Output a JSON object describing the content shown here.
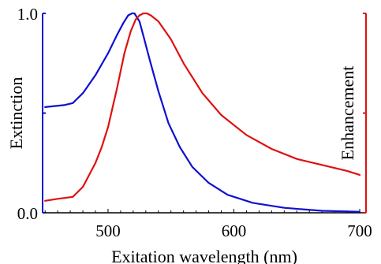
{
  "chart_data": {
    "type": "line",
    "title": "",
    "xlabel": "Exitation wavelength (nm)",
    "ylabel_left": "Extinction",
    "ylabel_right": "Enhancement",
    "xlim": [
      448,
      705
    ],
    "ylim": [
      0,
      1
    ],
    "x_ticks": [
      500,
      600,
      700
    ],
    "y_ticks_left": [
      0.0,
      1.0
    ],
    "y_tick_labels_left": [
      "0.0",
      "1.0"
    ],
    "grid": false,
    "legend": "none",
    "colors": {
      "extinction": "#1010d0",
      "enhancement": "#e01010",
      "axes": "#000000"
    },
    "series": [
      {
        "name": "Extinction",
        "axis": "left",
        "x": [
          450,
          465,
          472,
          480,
          490,
          500,
          507,
          512,
          516,
          519,
          521,
          523,
          525,
          528,
          533,
          540,
          548,
          557,
          567,
          580,
          595,
          615,
          640,
          670,
          700
        ],
        "y": [
          0.53,
          0.54,
          0.55,
          0.6,
          0.69,
          0.8,
          0.89,
          0.95,
          0.99,
          1.0,
          1.0,
          0.98,
          0.96,
          0.89,
          0.77,
          0.61,
          0.45,
          0.33,
          0.23,
          0.15,
          0.09,
          0.05,
          0.025,
          0.01,
          0.005
        ]
      },
      {
        "name": "Enhancement",
        "axis": "right",
        "x": [
          450,
          460,
          472,
          480,
          490,
          495,
          500,
          507,
          513,
          518,
          522,
          525,
          528,
          531,
          534,
          540,
          550,
          560,
          575,
          590,
          610,
          630,
          650,
          670,
          690,
          700
        ],
        "y": [
          0.06,
          0.07,
          0.08,
          0.13,
          0.25,
          0.33,
          0.43,
          0.62,
          0.8,
          0.91,
          0.97,
          0.99,
          1.0,
          1.0,
          0.99,
          0.96,
          0.87,
          0.75,
          0.6,
          0.49,
          0.39,
          0.32,
          0.27,
          0.24,
          0.21,
          0.19
        ]
      }
    ]
  }
}
